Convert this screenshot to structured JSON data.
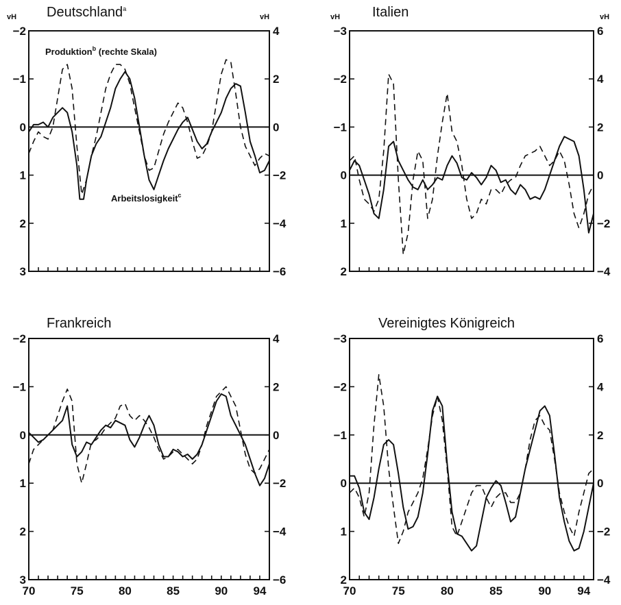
{
  "chart_data": [
    {
      "type": "line",
      "title": "Deutschland",
      "title_sup": "a",
      "left_unit": "vH",
      "right_unit": "vH",
      "left_axis": {
        "range": [
          -2,
          3
        ],
        "inverted": true,
        "ticks": [
          -2,
          -1,
          0,
          1,
          2,
          3
        ],
        "tick_labels": [
          "−2",
          "−1",
          "0",
          "1",
          "2",
          "3"
        ]
      },
      "right_axis": {
        "range": [
          4,
          -6
        ],
        "ticks": [
          4,
          2,
          0,
          -2,
          -4,
          -6
        ],
        "tick_labels": [
          "4",
          "2",
          "0",
          "−2",
          "−4",
          "−6"
        ]
      },
      "x_axis": {
        "range": [
          70,
          95
        ],
        "ticks": [
          70,
          75,
          80,
          85,
          90,
          94
        ],
        "tick_labels": [
          "70",
          "75",
          "80",
          "85",
          "90",
          "94"
        ]
      },
      "annotations": [
        {
          "text": "Produktion",
          "sup": "b",
          "suffix": " (rechte Skala)"
        },
        {
          "text": "Arbeitslosigkeit",
          "sup": "c"
        }
      ],
      "series": [
        {
          "style": "solid",
          "axis": "left",
          "x": [
            70,
            70.5,
            71,
            71.5,
            72,
            72.5,
            73,
            73.5,
            74,
            74.5,
            75,
            75.3,
            75.7,
            76,
            76.5,
            77,
            77.5,
            78,
            78.5,
            79,
            79.5,
            80,
            80.5,
            81,
            81.5,
            82,
            82.5,
            83,
            83.5,
            84,
            84.5,
            85,
            85.5,
            86,
            86.5,
            87,
            87.5,
            88,
            88.5,
            89,
            89.5,
            90,
            90.5,
            91,
            91.5,
            92,
            92.5,
            93,
            93.5,
            94,
            94.5,
            95
          ],
          "y": [
            0.1,
            -0.05,
            -0.05,
            -0.1,
            0,
            -0.2,
            -0.3,
            -0.4,
            -0.3,
            0.1,
            0.8,
            1.5,
            1.5,
            1.1,
            0.6,
            0.35,
            0.2,
            -0.1,
            -0.4,
            -0.8,
            -1.0,
            -1.15,
            -1.0,
            -0.6,
            0,
            0.6,
            1.1,
            1.3,
            1.0,
            0.7,
            0.45,
            0.25,
            0.05,
            -0.1,
            -0.2,
            0.05,
            0.3,
            0.45,
            0.35,
            0.1,
            -0.1,
            -0.3,
            -0.6,
            -0.8,
            -0.9,
            -0.85,
            -0.3,
            0.3,
            0.6,
            0.95,
            0.9,
            0.7
          ]
        },
        {
          "style": "dashed",
          "axis": "left",
          "x": [
            70,
            70.5,
            71,
            71.5,
            72,
            72.5,
            73,
            73.5,
            74,
            74.5,
            75,
            75.5,
            76,
            76.5,
            77,
            77.5,
            78,
            78.5,
            79,
            79.5,
            80,
            80.5,
            81,
            81.5,
            82,
            82.5,
            83,
            83.5,
            84,
            84.5,
            85,
            85.5,
            86,
            86.5,
            87,
            87.5,
            88,
            88.5,
            89,
            89.5,
            90,
            90.5,
            91,
            91.5,
            92,
            92.5,
            93,
            93.5,
            94,
            94.5,
            95
          ],
          "y": [
            0.55,
            0.3,
            0.1,
            0.2,
            0.25,
            0,
            -0.6,
            -1.2,
            -1.3,
            -0.8,
            0.4,
            1.4,
            1.1,
            0.6,
            0.2,
            -0.3,
            -0.8,
            -1.1,
            -1.3,
            -1.3,
            -1.2,
            -0.9,
            -0.4,
            0.1,
            0.6,
            0.9,
            0.85,
            0.5,
            0.15,
            -0.1,
            -0.3,
            -0.5,
            -0.4,
            -0.1,
            0.3,
            0.65,
            0.6,
            0.4,
            0.1,
            -0.5,
            -1.1,
            -1.4,
            -1.35,
            -0.7,
            0,
            0.4,
            0.6,
            0.8,
            0.65,
            0.55,
            0.6
          ]
        }
      ]
    },
    {
      "type": "line",
      "title": "Italien",
      "left_unit": "vH",
      "right_unit": "vH",
      "left_axis": {
        "range": [
          -3,
          2
        ],
        "inverted": true,
        "ticks": [
          -3,
          -2,
          -1,
          0,
          1,
          2
        ],
        "tick_labels": [
          "−3",
          "−2",
          "−1",
          "0",
          "1",
          "2"
        ]
      },
      "right_axis": {
        "range": [
          6,
          -4
        ],
        "ticks": [
          6,
          4,
          2,
          0,
          -2,
          -4
        ],
        "tick_labels": [
          "6",
          "4",
          "2",
          "0",
          "−2",
          "−4"
        ]
      },
      "x_axis": {
        "range": [
          70,
          95
        ],
        "ticks": [
          70,
          75,
          80,
          85,
          90,
          94
        ],
        "tick_labels": [
          "70",
          "75",
          "80",
          "85",
          "90",
          "94"
        ]
      },
      "series": [
        {
          "style": "solid",
          "axis": "left",
          "x": [
            70,
            70.5,
            71,
            71.5,
            72,
            72.5,
            73,
            73.5,
            74,
            74.5,
            75,
            75.5,
            76,
            76.5,
            77,
            77.5,
            78,
            78.5,
            79,
            79.5,
            80,
            80.5,
            81,
            81.5,
            82,
            82.5,
            83,
            83.5,
            84,
            84.5,
            85,
            85.5,
            86,
            86.5,
            87,
            87.5,
            88,
            88.5,
            89,
            89.5,
            90,
            90.5,
            91,
            91.5,
            92,
            92.5,
            93,
            93.5,
            94,
            94.5,
            95
          ],
          "y": [
            -0.1,
            -0.3,
            -0.2,
            0.1,
            0.4,
            0.8,
            0.9,
            0.3,
            -0.6,
            -0.7,
            -0.3,
            -0.1,
            0.1,
            0.25,
            0.3,
            0.1,
            0.3,
            0.2,
            0.05,
            0.1,
            -0.2,
            -0.4,
            -0.25,
            0.05,
            0.1,
            -0.05,
            0.05,
            0.2,
            0.05,
            -0.2,
            -0.1,
            0.15,
            0.1,
            0.3,
            0.4,
            0.2,
            0.3,
            0.5,
            0.45,
            0.5,
            0.3,
            0,
            -0.3,
            -0.6,
            -0.8,
            -0.75,
            -0.7,
            -0.4,
            0.3,
            1.2,
            0.8
          ]
        },
        {
          "style": "dashed",
          "axis": "left",
          "x": [
            70,
            70.5,
            71,
            71.5,
            72,
            72.5,
            73,
            73.5,
            74,
            74.5,
            75,
            75.5,
            76,
            76.5,
            77,
            77.5,
            78,
            78.5,
            79,
            79.5,
            80,
            80.5,
            81,
            81.5,
            82,
            82.5,
            83,
            83.5,
            84,
            84.5,
            85,
            85.5,
            86,
            86.5,
            87,
            87.5,
            88,
            88.5,
            89,
            89.5,
            90,
            90.5,
            91,
            91.5,
            92,
            92.5,
            93,
            93.5,
            94,
            94.5,
            95
          ],
          "y": [
            -0.3,
            -0.4,
            0.1,
            0.5,
            0.6,
            0.75,
            0.5,
            -0.5,
            -2.1,
            -1.9,
            0.1,
            1.65,
            1.2,
            0.1,
            -0.5,
            -0.3,
            0.9,
            0.5,
            -0.4,
            -1.1,
            -1.7,
            -0.9,
            -0.7,
            -0.2,
            0.5,
            0.9,
            0.8,
            0.5,
            0.6,
            0.3,
            0.3,
            0.4,
            0.2,
            0.1,
            0.05,
            -0.2,
            -0.4,
            -0.45,
            -0.5,
            -0.6,
            -0.4,
            -0.2,
            -0.3,
            -0.5,
            -0.3,
            0.2,
            0.8,
            1.1,
            0.8,
            0.4,
            0.2
          ]
        }
      ]
    },
    {
      "type": "line",
      "title": "Frankreich",
      "left_axis": {
        "range": [
          -2,
          3
        ],
        "inverted": true,
        "ticks": [
          -2,
          -1,
          0,
          1,
          2,
          3
        ],
        "tick_labels": [
          "−2",
          "−1",
          "0",
          "1",
          "2",
          "3"
        ]
      },
      "right_axis": {
        "range": [
          4,
          -6
        ],
        "ticks": [
          4,
          2,
          0,
          -2,
          -4,
          -6
        ],
        "tick_labels": [
          "4",
          "2",
          "0",
          "−2",
          "−4",
          "−6"
        ]
      },
      "x_axis": {
        "range": [
          70,
          95
        ],
        "ticks": [
          70,
          75,
          80,
          85,
          90,
          94
        ],
        "tick_labels": [
          "70",
          "75",
          "80",
          "85",
          "90",
          "94"
        ]
      },
      "series": [
        {
          "style": "solid",
          "axis": "left",
          "x": [
            70,
            70.5,
            71,
            71.5,
            72,
            72.5,
            73,
            73.5,
            74,
            74.5,
            75,
            75.5,
            76,
            76.5,
            77,
            77.5,
            78,
            78.5,
            79,
            79.5,
            80,
            80.5,
            81,
            81.5,
            82,
            82.5,
            83,
            83.5,
            84,
            84.5,
            85,
            85.5,
            86,
            86.5,
            87,
            87.5,
            88,
            88.5,
            89,
            89.5,
            90,
            90.5,
            91,
            91.5,
            92,
            92.5,
            93,
            93.5,
            94,
            94.5,
            95
          ],
          "y": [
            -0.05,
            0.05,
            0.15,
            0.1,
            0.0,
            -0.1,
            -0.2,
            -0.3,
            -0.6,
            0.2,
            0.45,
            0.35,
            0.15,
            0.2,
            0.05,
            -0.1,
            -0.2,
            -0.15,
            -0.3,
            -0.25,
            -0.2,
            0.1,
            0.25,
            0.05,
            -0.2,
            -0.4,
            -0.2,
            0.2,
            0.45,
            0.45,
            0.3,
            0.35,
            0.45,
            0.4,
            0.5,
            0.4,
            0.2,
            -0.1,
            -0.4,
            -0.7,
            -0.85,
            -0.8,
            -0.4,
            -0.2,
            0,
            0.2,
            0.5,
            0.8,
            1.05,
            0.9,
            0.6
          ]
        },
        {
          "style": "dashed",
          "axis": "left",
          "x": [
            70,
            70.5,
            71,
            71.5,
            72,
            72.5,
            73,
            73.5,
            74,
            74.5,
            75,
            75.5,
            76,
            76.5,
            77,
            77.5,
            78,
            78.5,
            79,
            79.5,
            80,
            80.5,
            81,
            81.5,
            82,
            82.5,
            83,
            83.5,
            84,
            84.5,
            85,
            85.5,
            86,
            86.5,
            87,
            87.5,
            88,
            88.5,
            89,
            89.5,
            90,
            90.5,
            91,
            91.5,
            92,
            92.5,
            93,
            93.5,
            94,
            94.5,
            95
          ],
          "y": [
            0.6,
            0.3,
            0.2,
            0.1,
            0,
            -0.1,
            -0.4,
            -0.7,
            -0.95,
            -0.7,
            0.6,
            1.0,
            0.6,
            0.15,
            0.1,
            0,
            -0.15,
            -0.25,
            -0.35,
            -0.6,
            -0.65,
            -0.4,
            -0.3,
            -0.4,
            -0.3,
            -0.15,
            0.05,
            0.3,
            0.5,
            0.45,
            0.35,
            0.3,
            0.4,
            0.5,
            0.6,
            0.5,
            0.2,
            -0.2,
            -0.5,
            -0.8,
            -0.9,
            -1.0,
            -0.8,
            -0.6,
            -0.1,
            0.4,
            0.7,
            0.8,
            0.7,
            0.5,
            0.3
          ]
        }
      ]
    },
    {
      "type": "line",
      "title": "Vereinigtes Königreich",
      "left_axis": {
        "range": [
          -3,
          2
        ],
        "inverted": true,
        "ticks": [
          -3,
          -2,
          -1,
          0,
          1,
          2
        ],
        "tick_labels": [
          "−3",
          "−2",
          "−1",
          "0",
          "1",
          "2"
        ]
      },
      "right_axis": {
        "range": [
          6,
          -4
        ],
        "ticks": [
          6,
          4,
          2,
          0,
          -2,
          -4
        ],
        "tick_labels": [
          "6",
          "4",
          "2",
          "0",
          "−2",
          "−4"
        ]
      },
      "x_axis": {
        "range": [
          70,
          95
        ],
        "ticks": [
          70,
          75,
          80,
          85,
          90,
          94
        ],
        "tick_labels": [
          "70",
          "75",
          "80",
          "85",
          "90",
          "94"
        ]
      },
      "series": [
        {
          "style": "solid",
          "axis": "left",
          "x": [
            70,
            70.5,
            71,
            71.5,
            72,
            72.5,
            73,
            73.5,
            74,
            74.5,
            75,
            75.5,
            76,
            76.5,
            77,
            77.5,
            78,
            78.5,
            79,
            79.5,
            80,
            80.5,
            81,
            81.5,
            82,
            82.5,
            83,
            83.5,
            84,
            84.5,
            85,
            85.5,
            86,
            86.5,
            87,
            87.5,
            88,
            88.5,
            89,
            89.5,
            90,
            90.5,
            91,
            91.5,
            92,
            92.5,
            93,
            93.5,
            94,
            94.5,
            95
          ],
          "y": [
            -0.15,
            -0.15,
            0.1,
            0.6,
            0.75,
            0.3,
            -0.3,
            -0.8,
            -0.9,
            -0.8,
            -0.2,
            0.5,
            0.95,
            0.9,
            0.7,
            0.2,
            -0.6,
            -1.5,
            -1.8,
            -1.6,
            -0.4,
            0.6,
            1.05,
            1.1,
            1.25,
            1.4,
            1.3,
            0.8,
            0.3,
            0.1,
            -0.05,
            0.05,
            0.4,
            0.8,
            0.7,
            0.2,
            -0.3,
            -0.7,
            -1.1,
            -1.5,
            -1.6,
            -1.4,
            -0.6,
            0.3,
            0.8,
            1.2,
            1.4,
            1.35,
            1.0,
            0.5,
            0.0
          ]
        },
        {
          "style": "dashed",
          "axis": "left",
          "x": [
            70,
            70.5,
            71,
            71.5,
            72,
            72.5,
            73,
            73.5,
            74,
            74.5,
            75,
            75.5,
            76,
            76.5,
            77,
            77.5,
            78,
            78.5,
            79,
            79.5,
            80,
            80.5,
            81,
            81.5,
            82,
            82.5,
            83,
            83.5,
            84,
            84.5,
            85,
            85.5,
            86,
            86.5,
            87,
            87.5,
            88,
            88.5,
            89,
            89.5,
            90,
            90.5,
            91,
            91.5,
            92,
            92.5,
            93,
            93.5,
            94,
            94.5,
            95
          ],
          "y": [
            0.2,
            0.1,
            0.3,
            0.7,
            0.2,
            -1.2,
            -2.25,
            -1.6,
            -0.3,
            0.5,
            1.25,
            1.0,
            0.6,
            0.4,
            0.2,
            -0.1,
            -0.7,
            -1.4,
            -1.8,
            -1.3,
            -0.3,
            0.9,
            1.1,
            0.8,
            0.5,
            0.2,
            0.05,
            0.05,
            0.3,
            0.5,
            0.3,
            0.2,
            0.2,
            0.4,
            0.4,
            0.2,
            -0.3,
            -0.9,
            -1.3,
            -1.4,
            -1.2,
            -1.1,
            -0.5,
            0.2,
            0.6,
            0.9,
            1.1,
            0.6,
            0.2,
            -0.2,
            -0.3
          ]
        }
      ]
    }
  ]
}
